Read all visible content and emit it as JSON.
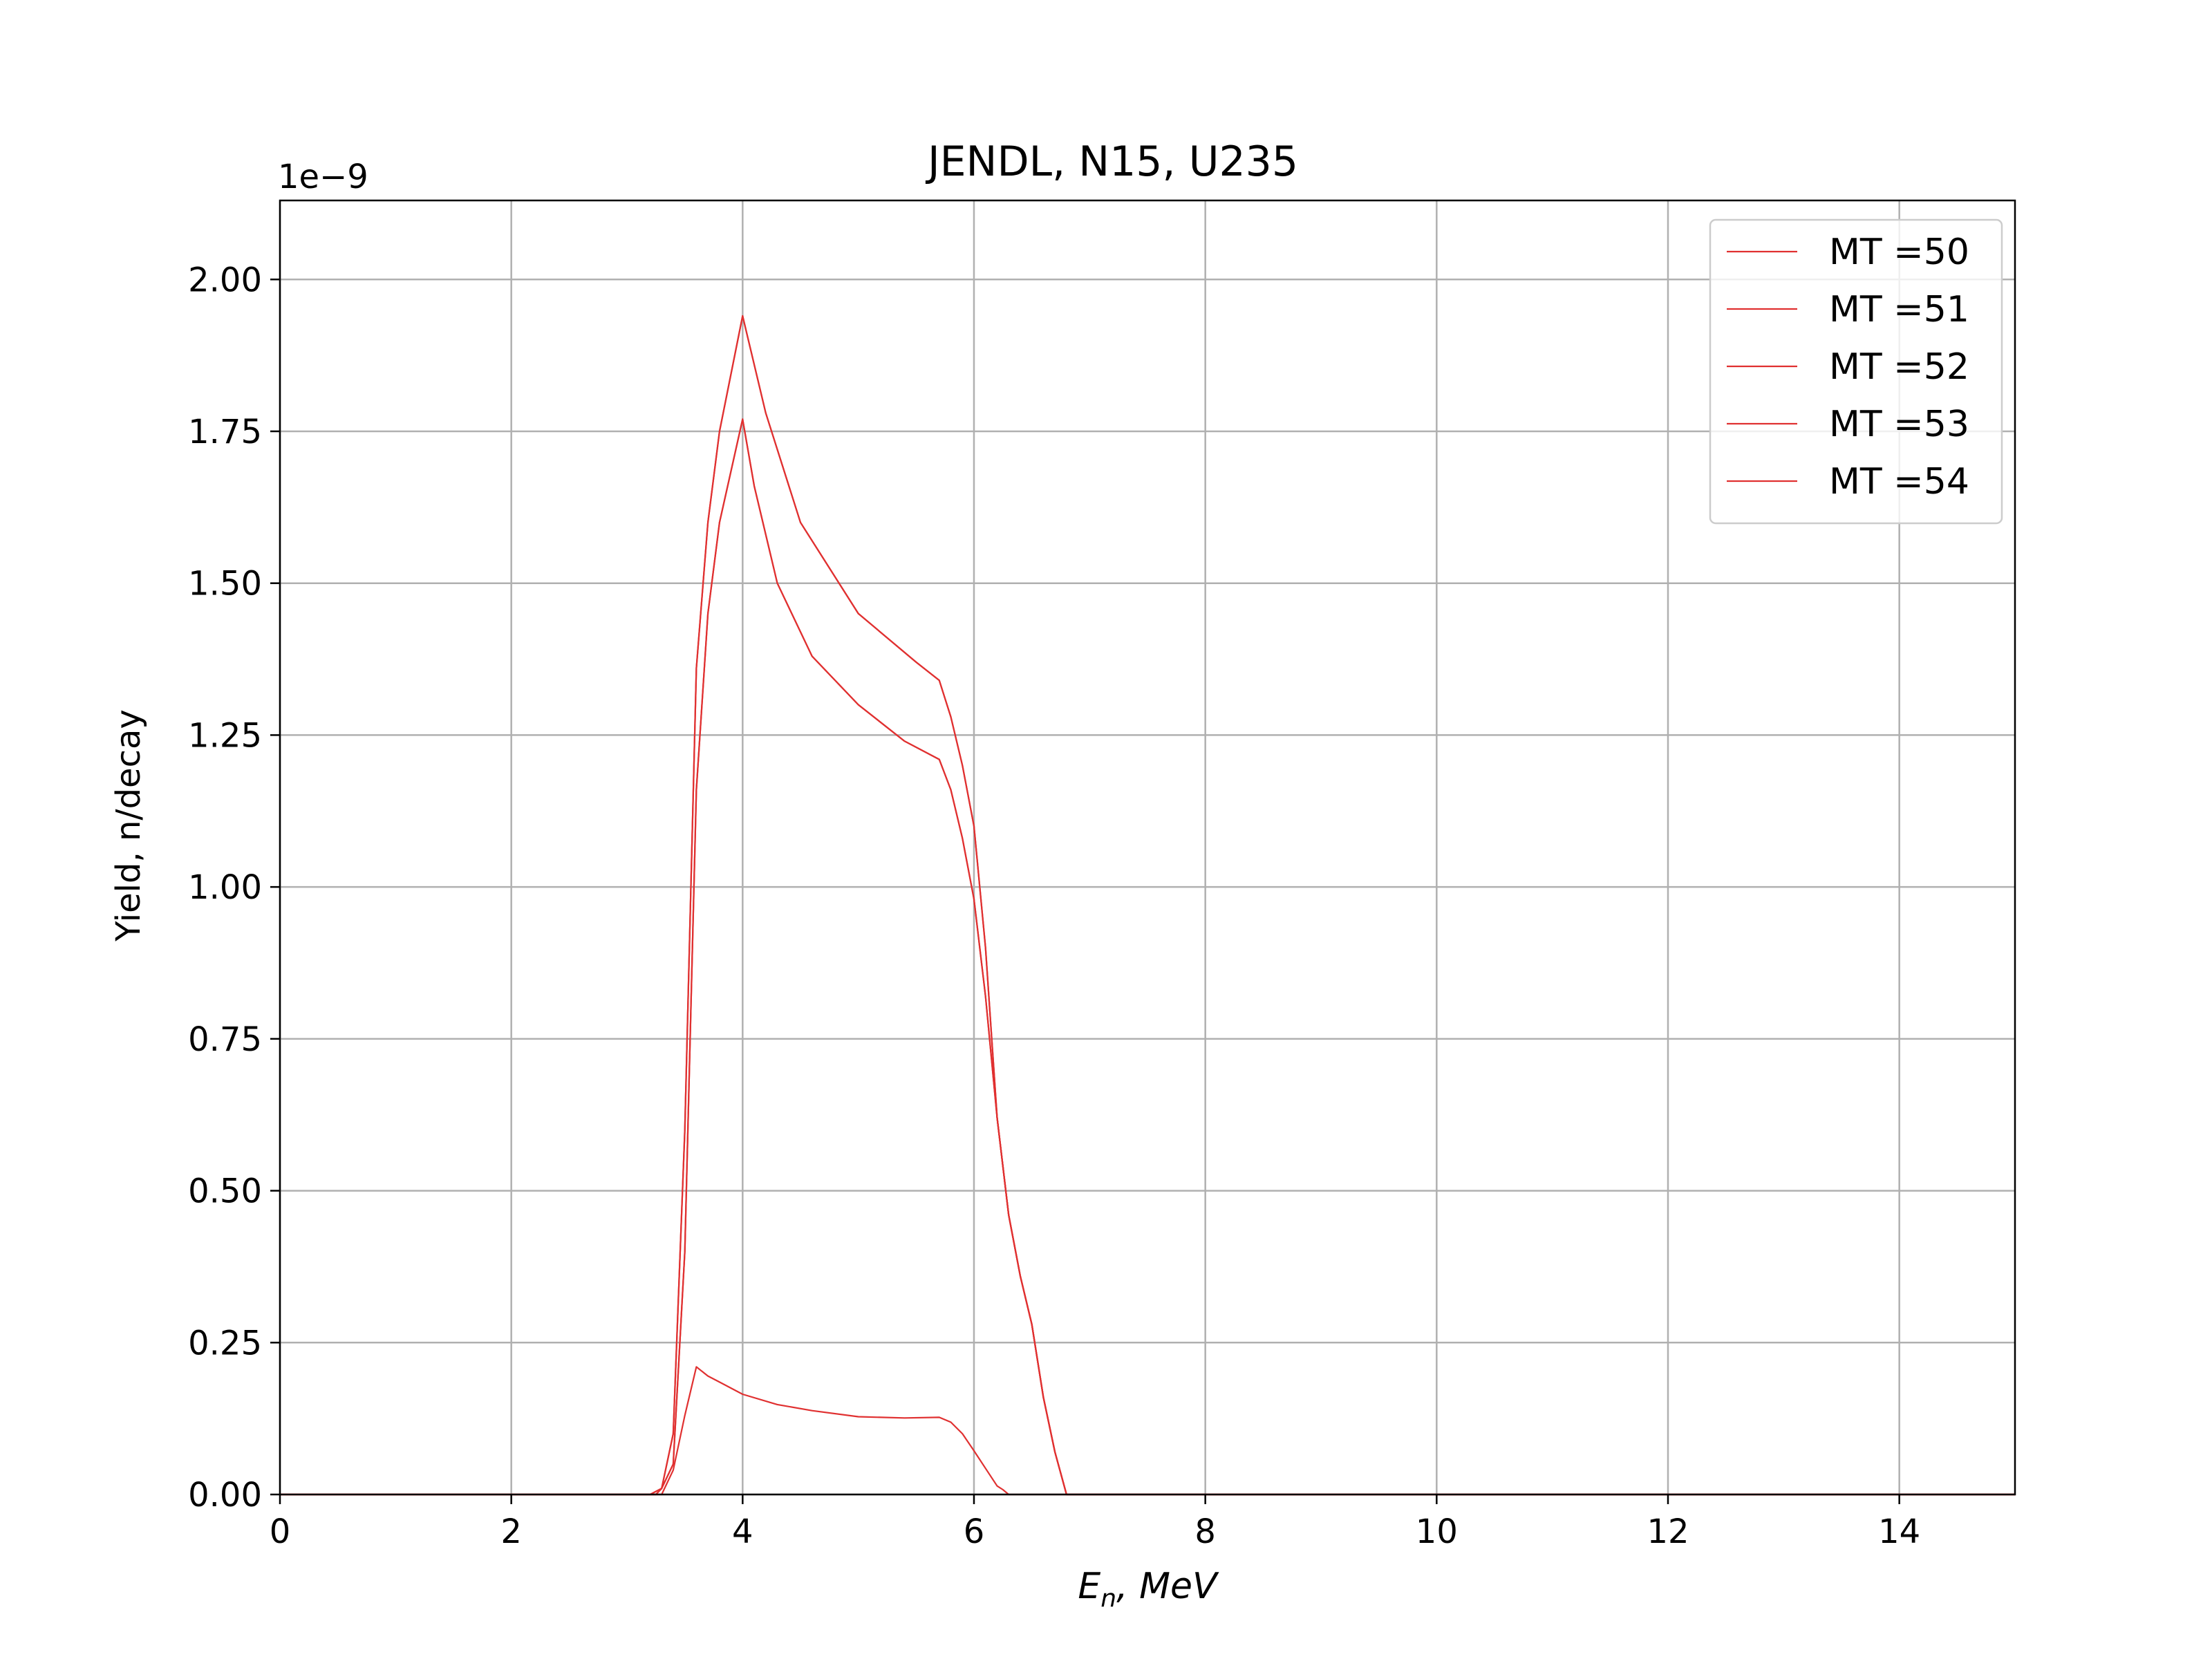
{
  "chart_data": {
    "type": "line",
    "title": "JENDL, N15, U235",
    "xlabel": "E_n, MeV",
    "ylabel": "Yield, n/decay",
    "y_offset_label": "1e−9",
    "y_scale": 1e-09,
    "xlim": [
      0,
      15
    ],
    "ylim": [
      0,
      2.13
    ],
    "x_ticks": [
      0,
      2,
      4,
      6,
      8,
      10,
      12,
      14
    ],
    "x_tick_labels": [
      "0",
      "2",
      "4",
      "6",
      "8",
      "10",
      "12",
      "14"
    ],
    "y_ticks": [
      0,
      0.25,
      0.5,
      0.75,
      1.0,
      1.25,
      1.5,
      1.75,
      2.0
    ],
    "y_tick_labels": [
      "0.00",
      "0.25",
      "0.50",
      "0.75",
      "1.00",
      "1.25",
      "1.50",
      "1.75",
      "2.00"
    ],
    "grid": true,
    "legend_position": "top-right",
    "line_color": "#e03030",
    "series": [
      {
        "name": "MT =50",
        "x": [
          0.0,
          3.2,
          3.3,
          3.4,
          3.5,
          3.6,
          3.7,
          3.8,
          4.0,
          4.2,
          4.5,
          5.0,
          5.5,
          5.7,
          5.8,
          5.9,
          6.0,
          6.1,
          6.2,
          6.3,
          6.4,
          6.5,
          6.6,
          6.7,
          6.8,
          7.0,
          15.0
        ],
        "y": [
          0,
          0,
          0.01,
          0.1,
          0.6,
          1.36,
          1.6,
          1.75,
          1.94,
          1.78,
          1.6,
          1.45,
          1.37,
          1.34,
          1.28,
          1.2,
          1.1,
          0.9,
          0.62,
          0.46,
          0.36,
          0.28,
          0.16,
          0.07,
          0,
          0,
          0
        ]
      },
      {
        "name": "MT =51",
        "x": [
          0.0,
          3.2,
          3.3,
          3.4,
          3.5,
          3.6,
          3.7,
          3.8,
          4.0,
          4.2,
          4.5,
          5.0,
          5.5,
          5.7,
          5.8,
          5.9,
          6.0,
          6.1,
          6.2,
          6.3,
          6.4,
          6.5,
          6.6,
          6.7,
          6.8,
          7.0,
          15.0
        ],
        "y": [
          0,
          0,
          0.01,
          0.1,
          0.6,
          1.36,
          1.6,
          1.75,
          1.94,
          1.78,
          1.6,
          1.45,
          1.37,
          1.34,
          1.28,
          1.2,
          1.1,
          0.9,
          0.62,
          0.46,
          0.36,
          0.28,
          0.16,
          0.07,
          0,
          0,
          0
        ]
      },
      {
        "name": "MT =52",
        "x": [
          0.0,
          3.25,
          3.3,
          3.4,
          3.5,
          3.6,
          3.7,
          3.8,
          4.0,
          4.1,
          4.3,
          4.6,
          5.0,
          5.4,
          5.7,
          5.8,
          5.9,
          6.0,
          6.1,
          6.2,
          6.3,
          6.4,
          6.5,
          6.6,
          6.7,
          6.8,
          7.0,
          15.0
        ],
        "y": [
          0,
          0,
          0.01,
          0.05,
          0.4,
          1.16,
          1.45,
          1.6,
          1.77,
          1.66,
          1.5,
          1.38,
          1.3,
          1.24,
          1.21,
          1.16,
          1.08,
          0.98,
          0.82,
          0.62,
          0.46,
          0.36,
          0.28,
          0.16,
          0.07,
          0,
          0,
          0
        ]
      },
      {
        "name": "MT =53",
        "x": [
          0.0,
          3.25,
          3.3,
          3.4,
          3.5,
          3.6,
          3.7,
          3.8,
          4.0,
          4.1,
          4.3,
          4.6,
          5.0,
          5.4,
          5.7,
          5.8,
          5.9,
          6.0,
          6.1,
          6.2,
          6.3,
          6.4,
          6.5,
          6.6,
          6.7,
          6.8,
          7.0,
          15.0
        ],
        "y": [
          0,
          0,
          0.01,
          0.05,
          0.4,
          1.16,
          1.45,
          1.6,
          1.77,
          1.66,
          1.5,
          1.38,
          1.3,
          1.24,
          1.21,
          1.16,
          1.08,
          0.98,
          0.82,
          0.62,
          0.46,
          0.36,
          0.28,
          0.16,
          0.07,
          0,
          0,
          0
        ]
      },
      {
        "name": "MT =54",
        "x": [
          0.0,
          3.3,
          3.4,
          3.5,
          3.6,
          3.7,
          3.8,
          4.0,
          4.3,
          4.6,
          5.0,
          5.4,
          5.7,
          5.8,
          5.9,
          6.0,
          6.1,
          6.2,
          6.25,
          6.3,
          15.0
        ],
        "y": [
          0,
          0,
          0.04,
          0.13,
          0.21,
          0.195,
          0.185,
          0.165,
          0.148,
          0.138,
          0.128,
          0.126,
          0.127,
          0.119,
          0.1,
          0.072,
          0.043,
          0.014,
          0.008,
          0,
          0
        ]
      }
    ]
  }
}
